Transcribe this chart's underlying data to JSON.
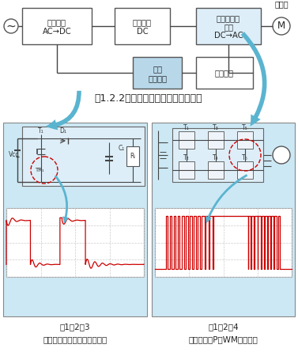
{
  "bg_color": "#ffffff",
  "light_blue_bg": "#cce8f4",
  "box_fill_white": "#ffffff",
  "box_fill_light": "#ddeef8",
  "box_fill_mid": "#b8d8ea",
  "box_border": "#555555",
  "arrow_color": "#5ab4d0",
  "red_color": "#cc0000",
  "red_fill": "#f0aaaa",
  "grid_color": "#bbbbbb",
  "text_color": "#222222",
  "title": "囱1.2.2　汎用インバータブロック図",
  "block1_line1": "整流回路",
  "block1_line2": "AC→DC",
  "block2_line1": "平滑回路",
  "block2_line2": "DC",
  "block3_line1": "インバータ",
  "block3_line2": "回路",
  "block3_line3": "DC→AC",
  "block_sub_line1": "サブ",
  "block_sub_line2": "電源回路",
  "block_ctrl": "制御回路",
  "motor_text": "モータ",
  "ac_sym": "~",
  "motor_sym": "M",
  "label_t1": "T₁",
  "label_d1": "D₁",
  "label_c1": "C₁",
  "label_rl": "Rₗ",
  "label_vcc": "Vcc",
  "label_tr1": "TR₁",
  "label_T1": "T₁",
  "label_T2": "T₂",
  "label_T3": "T₃",
  "label_T4": "T₄",
  "label_T5": "T₅",
  "label_T6": "T₆",
  "cap_left_1": "囱1．2．3",
  "cap_left_2": "サブ電源インバータ動作波形",
  "cap_right_1": "囱1．2．4",
  "cap_right_2": "インバータP　WM出力波形"
}
